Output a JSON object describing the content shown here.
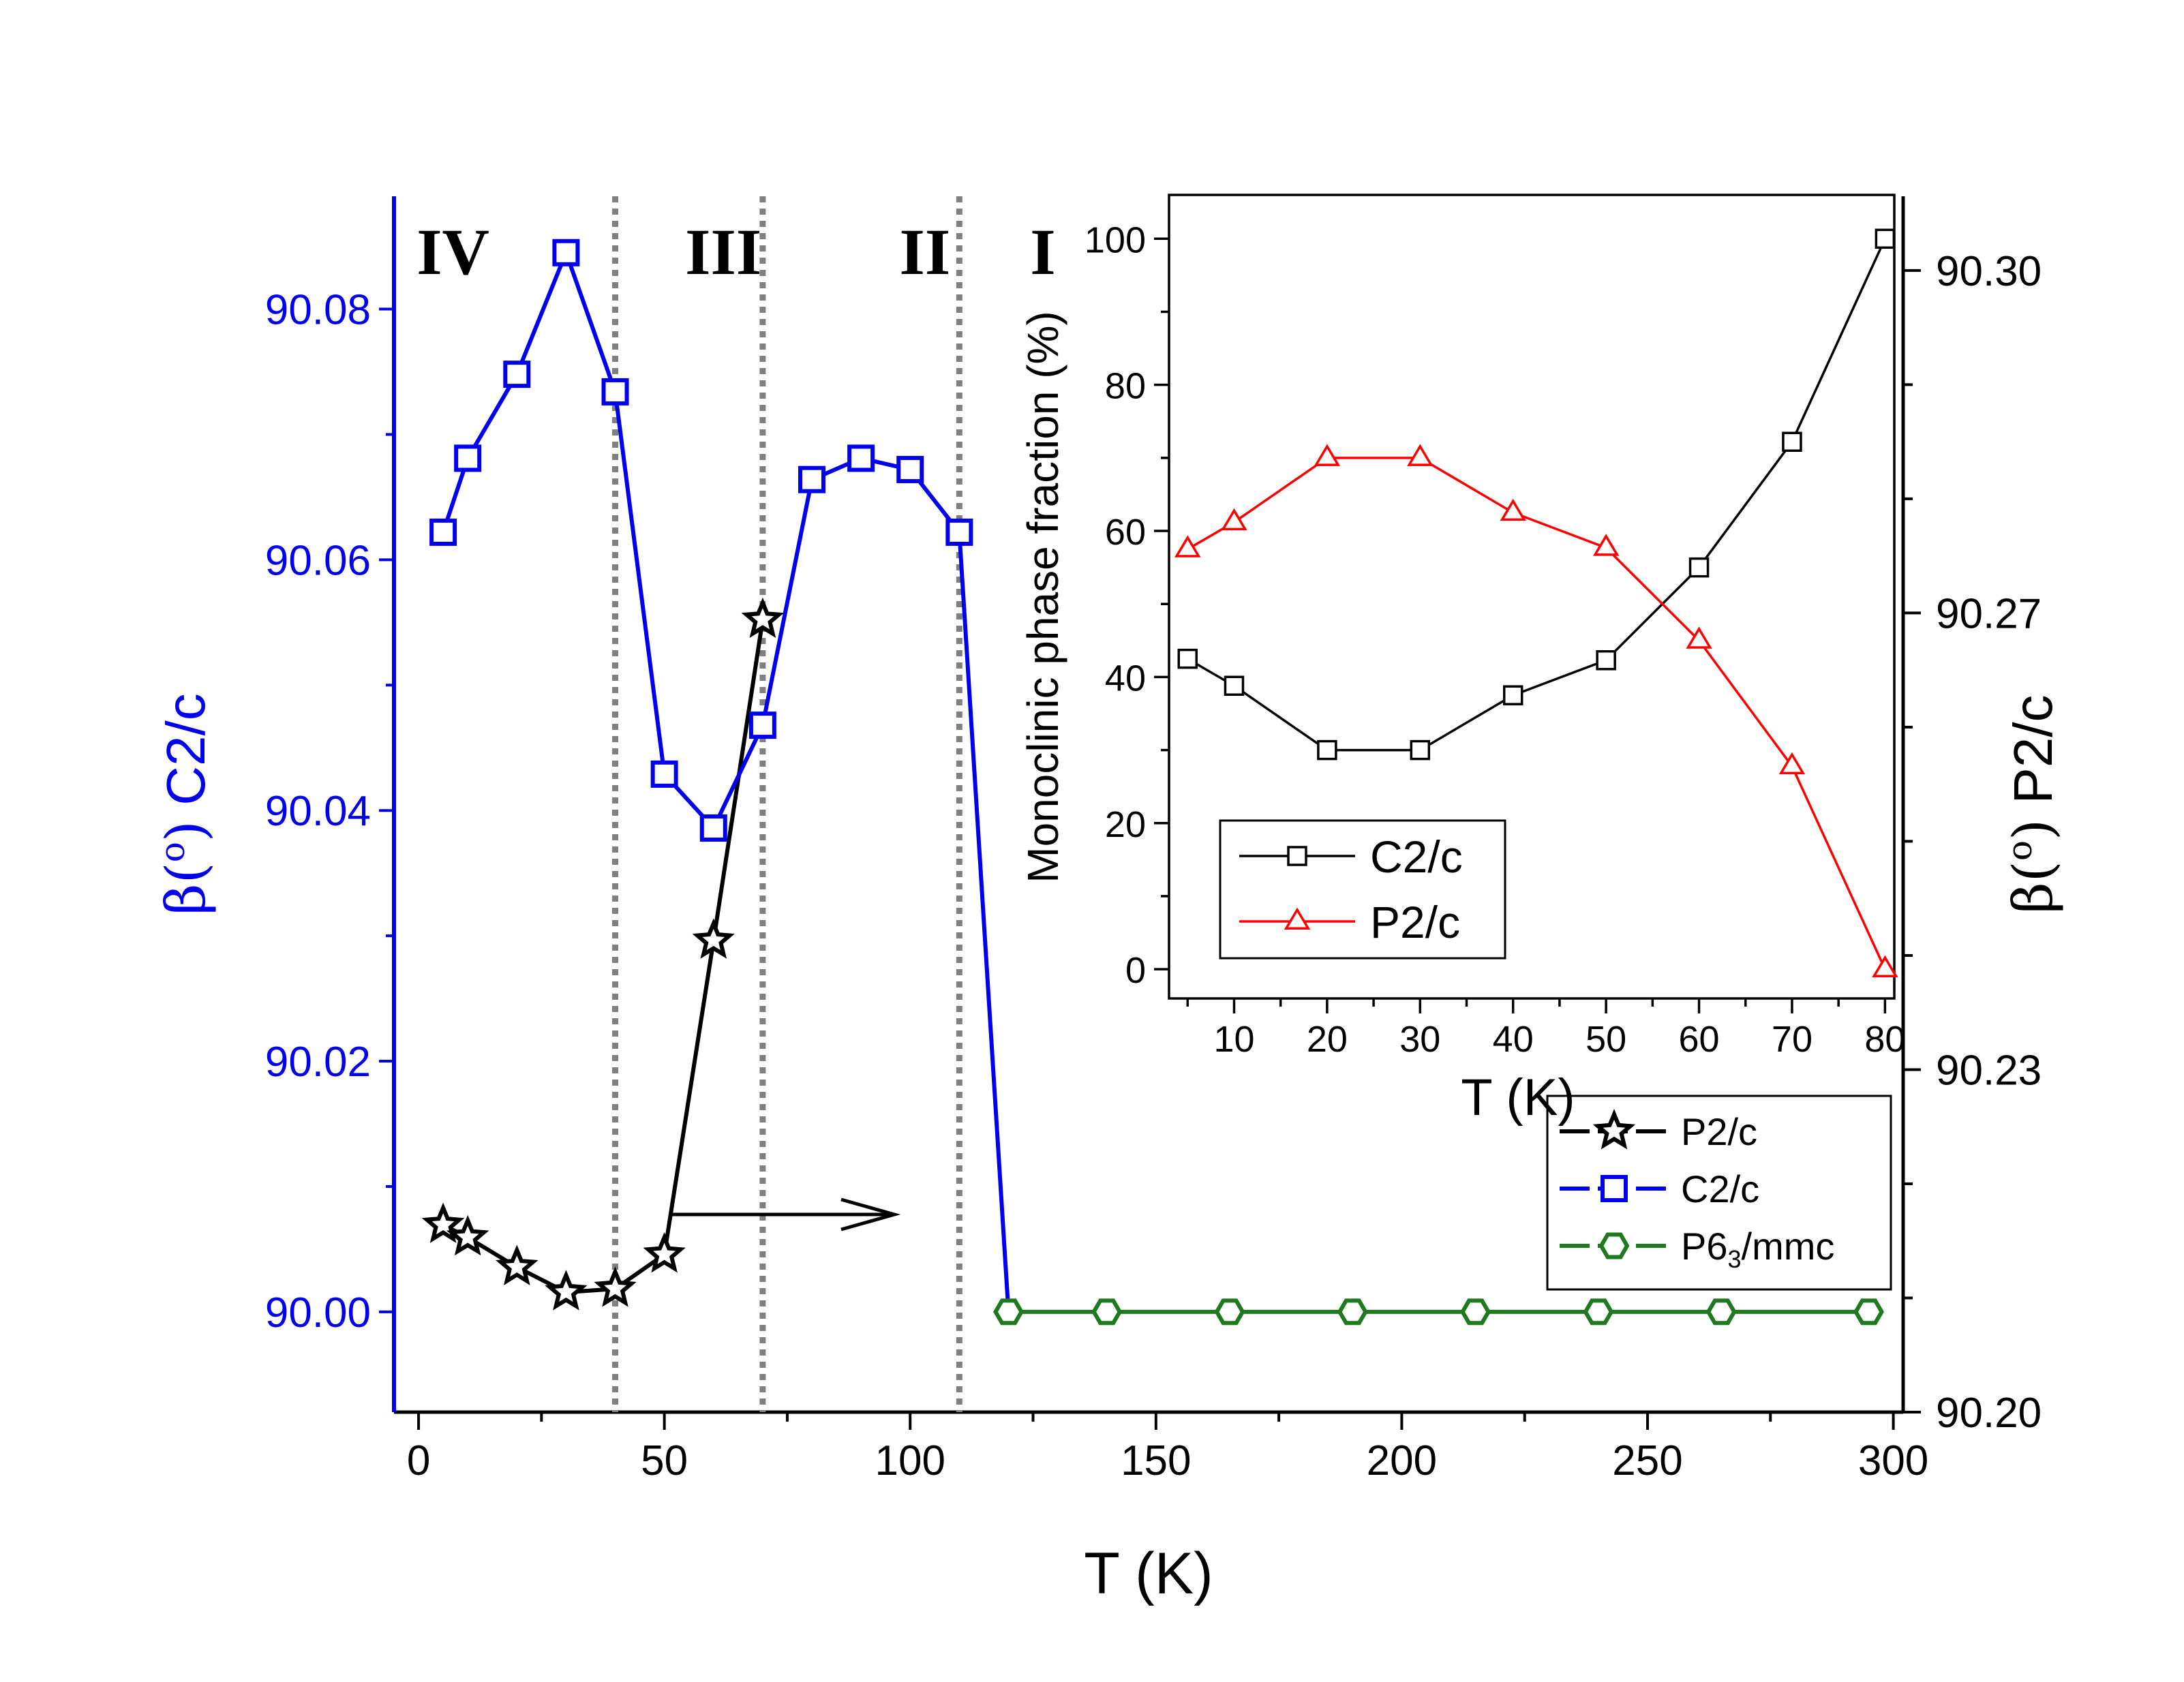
{
  "chart_data": [
    {
      "type": "line",
      "name": "main",
      "xlabel": "T (K)",
      "ylabel_left": {
        "sym": "β(",
        "deg": "o",
        "close": ")",
        "text": " C2/c"
      },
      "ylabel_right": {
        "sym": "β(",
        "deg": "o",
        "close": ")",
        "text": " P2/c"
      },
      "xlim": [
        -5,
        302
      ],
      "ylim_left": [
        89.992,
        90.089
      ],
      "ylim_right": [
        90.2,
        90.3065
      ],
      "x_ticks": [
        0,
        50,
        100,
        150,
        200,
        250,
        300
      ],
      "x_tick_labels": [
        "0",
        "50",
        "100",
        "150",
        "200",
        "250",
        "300"
      ],
      "y_left_ticks": [
        90.0,
        90.02,
        90.04,
        90.06,
        90.08
      ],
      "y_left_tick_labels": [
        "90.00",
        "90.02",
        "90.04",
        "90.06",
        "90.08"
      ],
      "y_right_ticks": [
        90.2,
        90.23,
        90.27,
        90.3
      ],
      "y_right_tick_labels": [
        "90.20",
        "90.23",
        "90.27",
        "90.30"
      ],
      "phase_boundaries": [
        40,
        70,
        110
      ],
      "regions": [
        {
          "label": "IV",
          "x": 7
        },
        {
          "label": "III",
          "x": 62
        },
        {
          "label": "II",
          "x": 103
        },
        {
          "label": "I",
          "x": 127
        }
      ],
      "series": [
        {
          "name": "P2/c",
          "axis": "right",
          "marker": "star",
          "color": "#000000",
          "x": [
            5,
            10,
            20,
            30,
            40,
            50,
            60,
            70
          ],
          "y": [
            90.2164,
            90.2153,
            90.2127,
            90.2105,
            90.2108,
            90.2138,
            90.2413,
            90.2694
          ]
        },
        {
          "name": "C2/c",
          "axis": "left",
          "marker": "square",
          "color": "#0000ee",
          "x": [
            5,
            10,
            20,
            30,
            40,
            50,
            60,
            70,
            80,
            90,
            100,
            110,
            120
          ],
          "y": [
            90.0622,
            90.0681,
            90.0748,
            90.0845,
            90.0734,
            90.0429,
            90.0386,
            90.0468,
            90.0664,
            90.0681,
            90.0672,
            90.0622,
            90.0
          ]
        },
        {
          "name": "P6₃/mmc",
          "axis": "left",
          "marker": "hexagon",
          "color": "#1f7a1f",
          "x": [
            120,
            140,
            165,
            190,
            215,
            240,
            265,
            295
          ],
          "y": [
            90.0,
            90.0,
            90.0,
            90.0,
            90.0,
            90.0,
            90.0,
            90.0
          ]
        }
      ],
      "legend": {
        "placement": "bottom-right",
        "entries": [
          {
            "text": "P2/c",
            "color": "#000000",
            "marker": "star"
          },
          {
            "text": "C2/c",
            "color": "#0000ee",
            "marker": "square"
          },
          {
            "base": "P6",
            "sub": "3",
            "tail": "/mmc",
            "color": "#1f7a1f",
            "marker": "hexagon"
          }
        ]
      },
      "annotation": "arrow from P2/c series pointing to right axis"
    },
    {
      "type": "line",
      "name": "inset",
      "xlabel": "T (K)",
      "ylabel": "Monoclinic phase fraction (%)",
      "xlim": [
        3,
        81
      ],
      "ylim": [
        -4,
        106
      ],
      "x_ticks": [
        10,
        20,
        30,
        40,
        50,
        60,
        70,
        80
      ],
      "x_tick_labels": [
        "10",
        "20",
        "30",
        "40",
        "50",
        "60",
        "70",
        "80"
      ],
      "y_ticks": [
        0,
        20,
        40,
        60,
        80,
        100
      ],
      "y_tick_labels": [
        "0",
        "20",
        "40",
        "60",
        "80",
        "100"
      ],
      "series": [
        {
          "name": "C2/c",
          "marker": "open-square",
          "color": "#000000",
          "x": [
            5,
            10,
            20,
            30,
            40,
            50,
            60,
            70,
            80
          ],
          "y": [
            42.5,
            38.8,
            30.0,
            30.0,
            37.5,
            42.3,
            55.0,
            72.2,
            100.0
          ]
        },
        {
          "name": "P2/c",
          "marker": "open-triangle",
          "color": "#ff0000",
          "x": [
            5,
            10,
            20,
            30,
            40,
            50,
            60,
            70,
            80
          ],
          "y": [
            57.5,
            61.2,
            70.0,
            70.0,
            62.5,
            57.7,
            45.0,
            27.8,
            0.0
          ]
        }
      ],
      "legend": {
        "placement": "bottom-left",
        "entries": [
          {
            "text": "C2/c",
            "color": "#000000",
            "marker": "open-square"
          },
          {
            "text": "P2/c",
            "color": "#ff0000",
            "marker": "open-triangle"
          }
        ]
      }
    }
  ]
}
